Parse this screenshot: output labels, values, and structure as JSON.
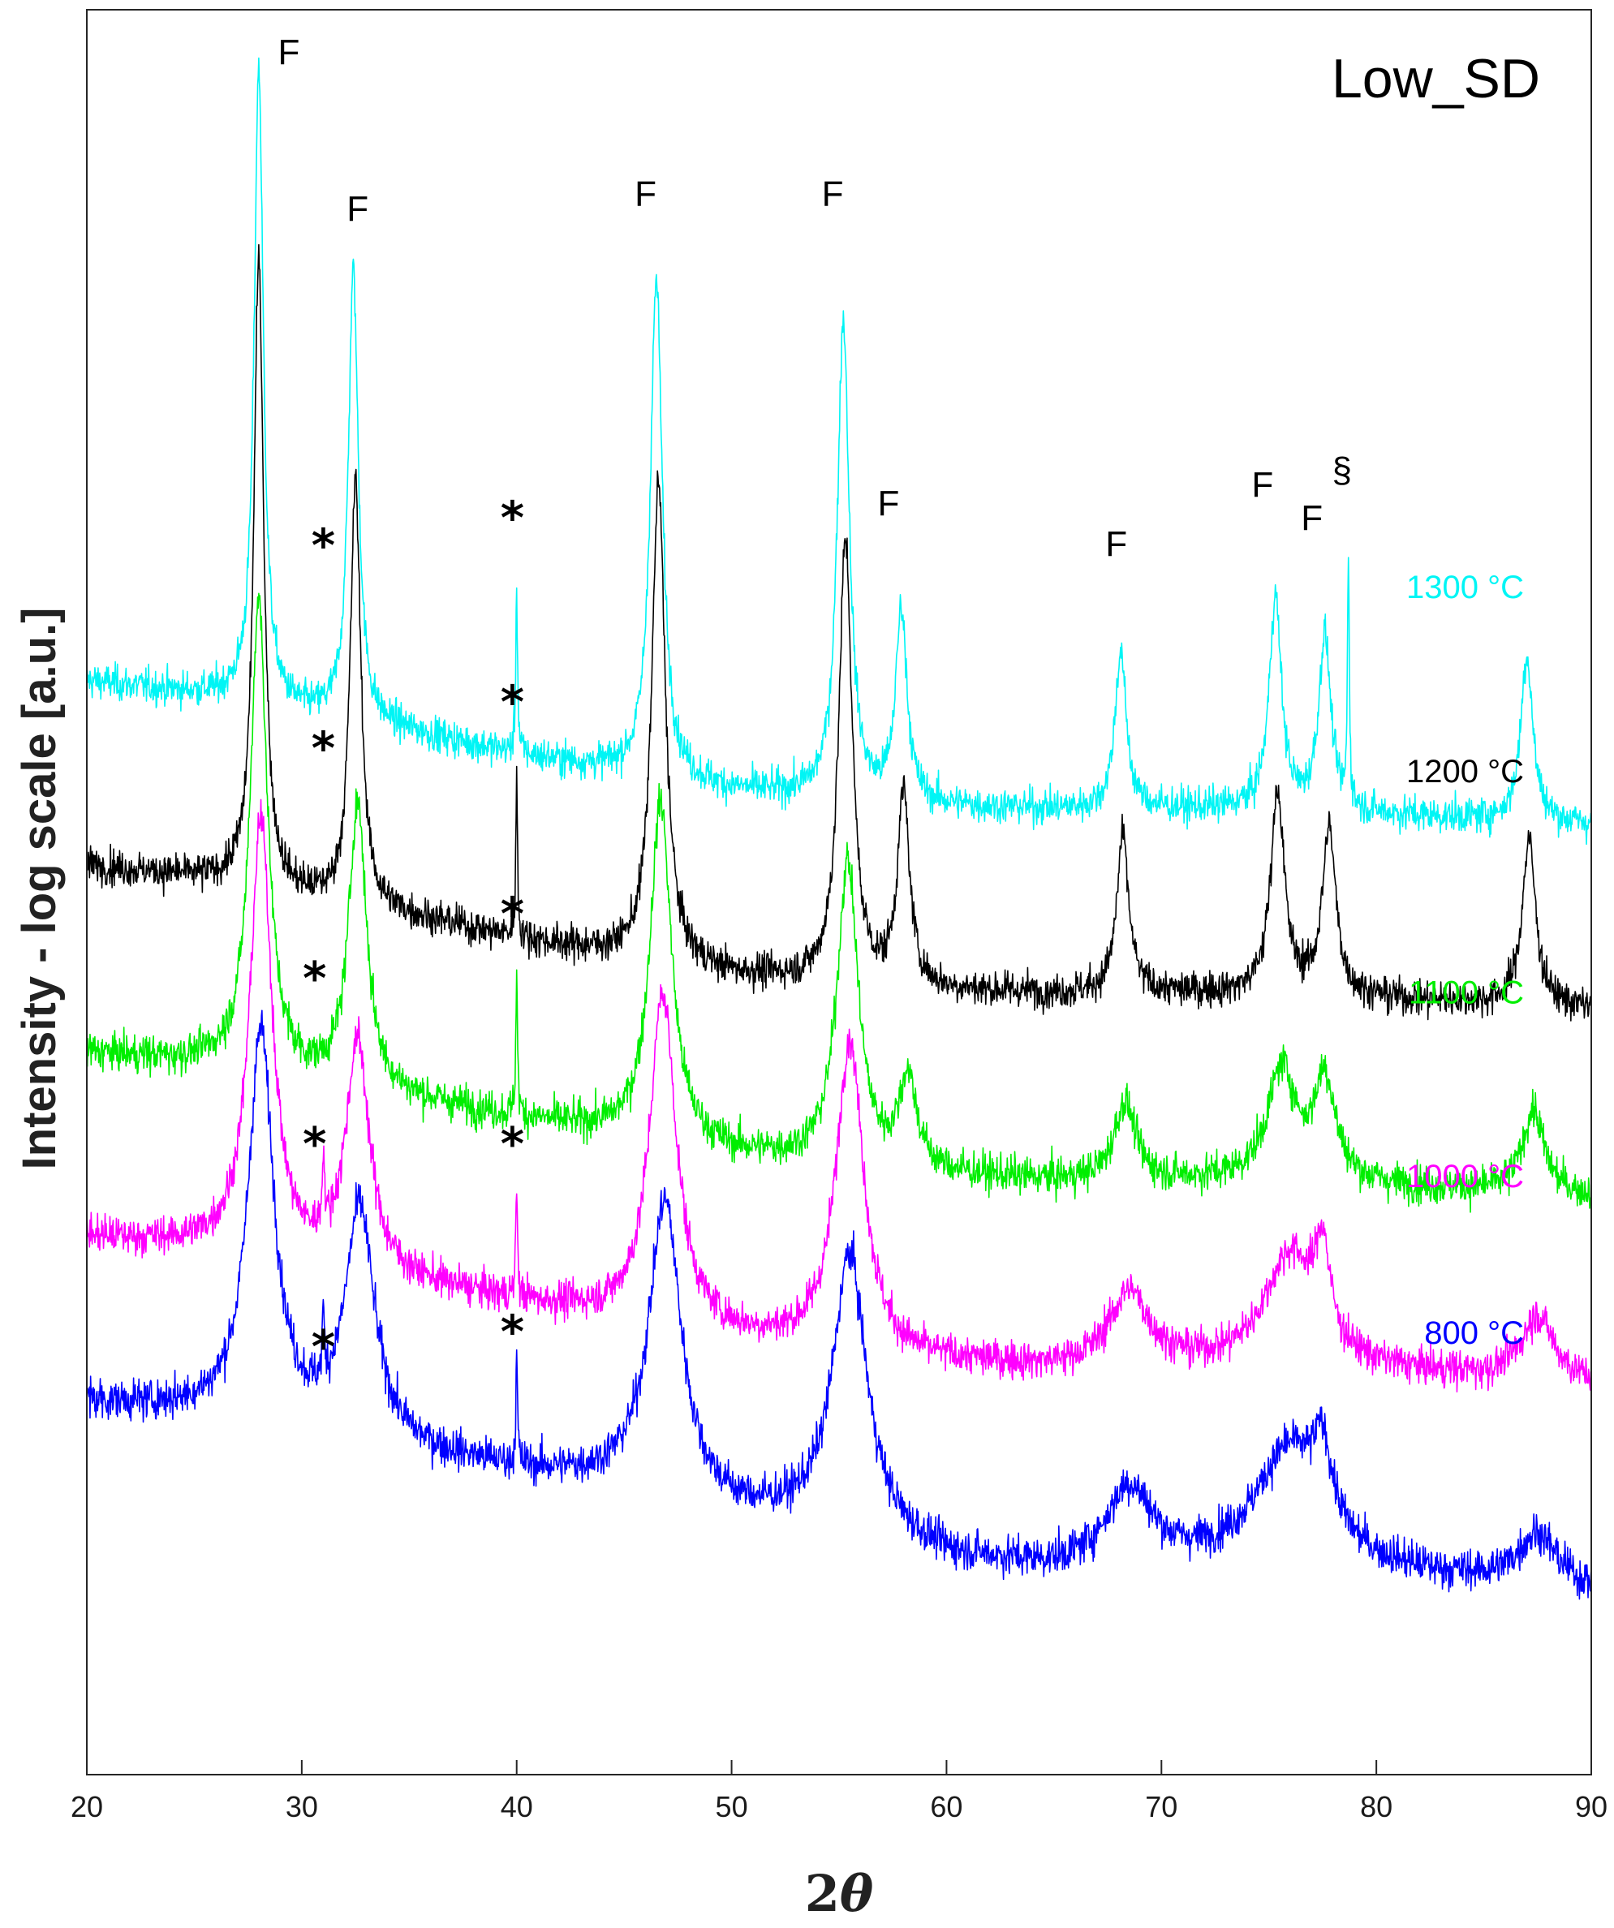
{
  "chart_data": {
    "type": "line",
    "title": "Low_SD",
    "xlabel_num": "2",
    "xlabel_sym": "θ",
    "ylabel": "Intensity - log scale [a.u.]",
    "xlim": [
      20,
      90
    ],
    "xticks": [
      "20",
      "30",
      "40",
      "50",
      "60",
      "70",
      "80",
      "90"
    ],
    "yticks": "none (arbitrary units, log scale, curves vertically offset)",
    "series": [
      {
        "name": "1300 °C",
        "color": "#00f5f5",
        "offset": 4,
        "noise": 0.075,
        "baseline_points": [
          [
            20,
            0.6
          ],
          [
            27,
            0.5
          ],
          [
            30,
            0.42
          ],
          [
            35,
            0.32
          ],
          [
            40,
            0.2
          ],
          [
            45,
            0.1
          ],
          [
            50,
            0.0
          ],
          [
            58,
            -0.08
          ],
          [
            65,
            -0.1
          ],
          [
            75,
            -0.1
          ],
          [
            90,
            -0.18
          ]
        ],
        "peaks": [
          [
            28.0,
            3.45,
            0.26
          ],
          [
            32.4,
            2.45,
            0.28
          ],
          [
            40.0,
            0.9,
            0.05
          ],
          [
            46.5,
            2.7,
            0.34
          ],
          [
            55.2,
            2.6,
            0.34
          ],
          [
            57.9,
            1.05,
            0.32
          ],
          [
            68.1,
            0.85,
            0.32
          ],
          [
            75.3,
            1.15,
            0.34
          ],
          [
            77.6,
            0.95,
            0.34
          ],
          [
            78.7,
            1.35,
            0.05
          ],
          [
            87.0,
            0.9,
            0.34
          ]
        ]
      },
      {
        "name": "1200 °C",
        "color": "#000000",
        "offset": 3,
        "noise": 0.075,
        "baseline_points": [
          [
            20,
            0.6
          ],
          [
            27,
            0.5
          ],
          [
            30,
            0.42
          ],
          [
            35,
            0.32
          ],
          [
            40,
            0.2
          ],
          [
            45,
            0.1
          ],
          [
            50,
            0.0
          ],
          [
            58,
            -0.08
          ],
          [
            65,
            -0.1
          ],
          [
            75,
            -0.1
          ],
          [
            90,
            -0.18
          ]
        ],
        "peaks": [
          [
            28.0,
            3.4,
            0.28
          ],
          [
            32.5,
            2.3,
            0.3
          ],
          [
            40.0,
            0.85,
            0.05
          ],
          [
            46.6,
            2.6,
            0.38
          ],
          [
            55.3,
            2.4,
            0.38
          ],
          [
            58.0,
            1.05,
            0.34
          ],
          [
            68.2,
            0.85,
            0.34
          ],
          [
            75.4,
            1.1,
            0.38
          ],
          [
            77.8,
            0.9,
            0.38
          ],
          [
            87.1,
            0.9,
            0.38
          ]
        ]
      },
      {
        "name": "1100 °C",
        "color": "#00ee00",
        "offset": 2,
        "noise": 0.08,
        "baseline_points": [
          [
            20,
            0.58
          ],
          [
            27,
            0.5
          ],
          [
            30,
            0.42
          ],
          [
            35,
            0.32
          ],
          [
            40,
            0.22
          ],
          [
            45,
            0.12
          ],
          [
            50,
            0.02
          ],
          [
            58,
            -0.08
          ],
          [
            65,
            -0.12
          ],
          [
            75,
            -0.12
          ],
          [
            90,
            -0.2
          ]
        ],
        "peaks": [
          [
            28.0,
            2.55,
            0.48
          ],
          [
            32.6,
            1.55,
            0.5
          ],
          [
            40.0,
            0.75,
            0.05
          ],
          [
            46.7,
            1.85,
            0.6
          ],
          [
            55.4,
            1.65,
            0.6
          ],
          [
            58.2,
            0.5,
            0.5
          ],
          [
            68.3,
            0.42,
            0.6
          ],
          [
            75.6,
            0.6,
            0.8
          ],
          [
            77.6,
            0.55,
            0.6
          ],
          [
            87.3,
            0.45,
            0.6
          ]
        ]
      },
      {
        "name": "1000 °C",
        "color": "#ff00ff",
        "offset": 1,
        "noise": 0.08,
        "baseline_points": [
          [
            20,
            0.58
          ],
          [
            27,
            0.5
          ],
          [
            30,
            0.42
          ],
          [
            35,
            0.32
          ],
          [
            40,
            0.22
          ],
          [
            45,
            0.12
          ],
          [
            50,
            0.02
          ],
          [
            58,
            -0.1
          ],
          [
            65,
            -0.14
          ],
          [
            75,
            -0.12
          ],
          [
            90,
            -0.22
          ]
        ],
        "peaks": [
          [
            28.1,
            2.35,
            0.62
          ],
          [
            32.6,
            1.25,
            0.66
          ],
          [
            31.0,
            0.4,
            0.06
          ],
          [
            40.0,
            0.6,
            0.05
          ],
          [
            46.8,
            1.8,
            0.75
          ],
          [
            55.5,
            1.7,
            0.78
          ],
          [
            68.5,
            0.4,
            1.1
          ],
          [
            76.0,
            0.6,
            1.4
          ],
          [
            77.5,
            0.5,
            0.4
          ],
          [
            87.5,
            0.35,
            0.9
          ]
        ]
      },
      {
        "name": "800 °C",
        "color": "#0000ff",
        "offset": 0,
        "noise": 0.085,
        "baseline_points": [
          [
            20,
            0.68
          ],
          [
            27,
            0.6
          ],
          [
            30,
            0.52
          ],
          [
            35,
            0.4
          ],
          [
            40,
            0.3
          ],
          [
            45,
            0.22
          ],
          [
            50,
            0.06
          ],
          [
            55,
            -0.02
          ],
          [
            60,
            -0.18
          ],
          [
            65,
            -0.24
          ],
          [
            75,
            -0.2
          ],
          [
            90,
            -0.35
          ]
        ],
        "peaks": [
          [
            28.1,
            2.1,
            0.72
          ],
          [
            32.7,
            1.25,
            0.82
          ],
          [
            31.0,
            0.35,
            0.06
          ],
          [
            40.0,
            0.55,
            0.05
          ],
          [
            46.9,
            1.6,
            0.9
          ],
          [
            55.5,
            1.5,
            0.95
          ],
          [
            68.5,
            0.42,
            1.3
          ],
          [
            76.0,
            0.62,
            1.9
          ],
          [
            77.5,
            0.4,
            0.5
          ],
          [
            87.5,
            0.28,
            1.1
          ]
        ]
      }
    ],
    "annotations": [
      {
        "text": "F",
        "x": 29.4,
        "series": 0,
        "y": 3.95
      },
      {
        "text": "F",
        "x": 32.6,
        "series": 0,
        "y": 3.1
      },
      {
        "text": "F",
        "x": 46.0,
        "series": 0,
        "y": 3.18
      },
      {
        "text": "F",
        "x": 54.7,
        "series": 0,
        "y": 3.18
      },
      {
        "text": "F",
        "x": 57.3,
        "series": 0,
        "y": 1.5
      },
      {
        "text": "F",
        "x": 67.9,
        "series": 0,
        "y": 1.28
      },
      {
        "text": "F",
        "x": 74.7,
        "series": 0,
        "y": 1.6
      },
      {
        "text": "F",
        "x": 77.0,
        "series": 0,
        "y": 1.42
      },
      {
        "text": "§",
        "x": 78.4,
        "series": 0,
        "y": 1.68
      },
      {
        "text": "*",
        "x": 31.0,
        "series": 0,
        "y": 1.25
      },
      {
        "text": "*",
        "x": 39.8,
        "series": 0,
        "y": 1.4
      },
      {
        "text": "*",
        "x": 31.0,
        "series": 1,
        "y": 1.15
      },
      {
        "text": "*",
        "x": 39.8,
        "series": 1,
        "y": 1.4
      },
      {
        "text": "*",
        "x": 30.6,
        "series": 2,
        "y": 0.9
      },
      {
        "text": "*",
        "x": 39.8,
        "series": 2,
        "y": 1.25
      },
      {
        "text": "*",
        "x": 30.6,
        "series": 3,
        "y": 1.0
      },
      {
        "text": "*",
        "x": 39.8,
        "series": 3,
        "y": 1.0
      },
      {
        "text": "*",
        "x": 31.0,
        "series": 4,
        "y": 0.9
      },
      {
        "text": "*",
        "x": 39.8,
        "series": 4,
        "y": 0.98
      }
    ],
    "temperature_labels": [
      {
        "text": "1300 °C",
        "series": 0,
        "color": "#00f5f5"
      },
      {
        "text": "1200 °C",
        "series": 1,
        "color": "#000000"
      },
      {
        "text": "1100 °C",
        "series": 2,
        "color": "#00ee00"
      },
      {
        "text": "1000 °C",
        "series": 3,
        "color": "#ff00ff"
      },
      {
        "text": "800 °C",
        "series": 4,
        "color": "#0000ff"
      }
    ]
  }
}
